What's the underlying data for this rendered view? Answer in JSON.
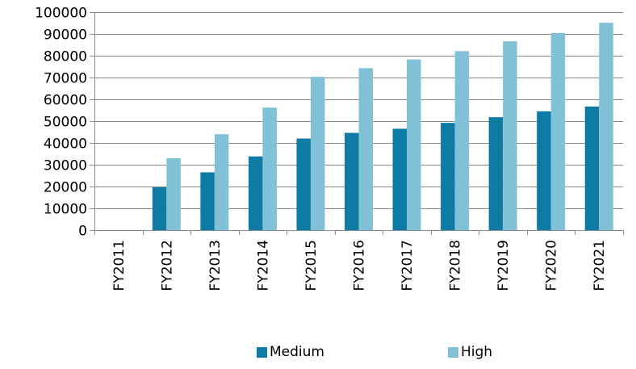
{
  "chart_data": {
    "type": "bar",
    "title": "",
    "xlabel": "",
    "ylabel": "",
    "categories": [
      "FY2011",
      "FY2012",
      "FY2013",
      "FY2014",
      "FY2015",
      "FY2016",
      "FY2017",
      "FY2018",
      "FY2019",
      "FY2020",
      "FY2021"
    ],
    "series": [
      {
        "name": "Medium",
        "color": "#0e7ba5",
        "values": [
          0,
          19700,
          26500,
          33800,
          42000,
          44600,
          46500,
          49200,
          51800,
          54500,
          56700
        ]
      },
      {
        "name": "High",
        "color": "#80c1d8",
        "values": [
          0,
          33000,
          44000,
          56200,
          70300,
          74300,
          78300,
          82100,
          86600,
          90400,
          95100
        ]
      }
    ],
    "ylim": [
      0,
      100000
    ],
    "yticks": [
      0,
      10000,
      20000,
      30000,
      40000,
      50000,
      60000,
      70000,
      80000,
      90000,
      100000
    ],
    "grid": true,
    "legend_position": "bottom"
  }
}
